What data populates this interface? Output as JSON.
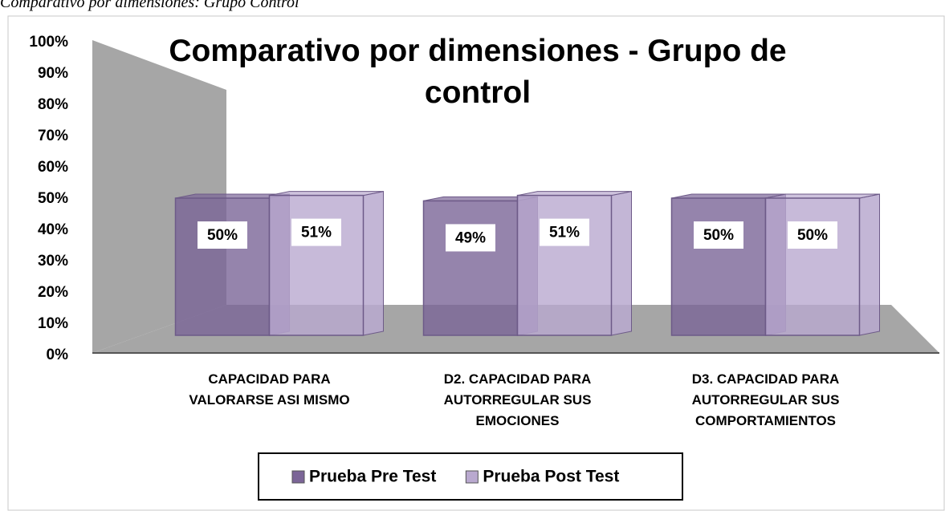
{
  "caption": "Comparativo por dimensiones: Grupo Control",
  "chart_data": {
    "type": "bar",
    "title": "Comparativo por dimensiones - Grupo de control",
    "categories": [
      "CAPACIDAD PARA VALORARSE ASI MISMO",
      "D2. CAPACIDAD PARA AUTORREGULAR SUS EMOCIONES",
      "D3. CAPACIDAD  PARA AUTORREGULAR SUS COMPORTAMIENTOS"
    ],
    "series": [
      {
        "name": "Prueba Pre Test",
        "color": "#7b6597",
        "values": [
          50,
          49,
          50
        ],
        "value_labels": [
          "50%",
          "49%",
          "50%"
        ]
      },
      {
        "name": "Prueba Post Test",
        "color": "#b9a9cf",
        "values": [
          51,
          51,
          50
        ],
        "value_labels": [
          "51%",
          "51%",
          "50%"
        ]
      }
    ],
    "ylim": [
      0,
      100
    ],
    "yticks": [
      {
        "value": 0,
        "label": "0%"
      },
      {
        "value": 10,
        "label": "10%"
      },
      {
        "value": 20,
        "label": "20%"
      },
      {
        "value": 30,
        "label": "30%"
      },
      {
        "value": 40,
        "label": "40%"
      },
      {
        "value": 50,
        "label": "50%"
      },
      {
        "value": 60,
        "label": "60%"
      },
      {
        "value": 70,
        "label": "70%"
      },
      {
        "value": 80,
        "label": "80%"
      },
      {
        "value": 90,
        "label": "90%"
      },
      {
        "value": 100,
        "label": "100%"
      }
    ],
    "legend": "bottom"
  }
}
